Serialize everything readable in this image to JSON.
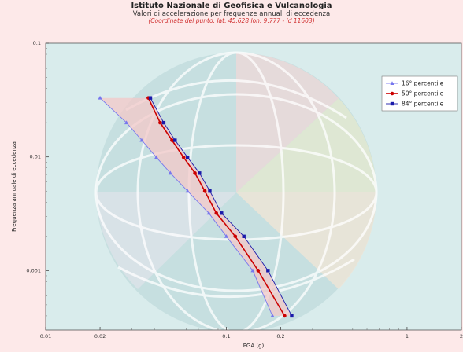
{
  "title": "Istituto Nazionale di Geofisica e Vulcanologia",
  "subtitle": "Valori di accelerazione per frequenze annuali di eccedenza",
  "coordinates": "(Coordinate del punto: lat. 45.628 lon. 9.777 - id 11603)",
  "colors": {
    "background": "#fde9e9",
    "plot_bg": "#d9ecec",
    "p16": "#7777ee",
    "p50": "#cc0000",
    "p84": "#1a1aaa",
    "band": "#f3c8c8"
  },
  "chart_data": {
    "type": "line",
    "xlabel": "PGA (g)",
    "ylabel": "Frequenza annuale di eccedenza",
    "x_scale": "log",
    "y_scale": "log",
    "xlim": [
      0.01,
      2
    ],
    "ylim": [
      0.0003,
      0.1
    ],
    "x_ticks": [
      {
        "value": 0.01,
        "label": "0.01"
      },
      {
        "value": 0.02,
        "label": "0.02"
      },
      {
        "value": 0.1,
        "label": "0.1"
      },
      {
        "value": 0.2,
        "label": "0.2"
      },
      {
        "value": 1,
        "label": "1"
      },
      {
        "value": 2,
        "label": "2"
      }
    ],
    "y_ticks": [
      {
        "value": 0.1,
        "label": "0.1"
      },
      {
        "value": 0.01,
        "label": "0.01"
      },
      {
        "value": 0.001,
        "label": "0.001"
      }
    ],
    "grid": false,
    "legend_position": "top-right",
    "series": [
      {
        "name": "16° percentile",
        "marker": "triangle",
        "x": [
          0.02,
          0.028,
          0.034,
          0.041,
          0.049,
          0.061,
          0.08,
          0.1,
          0.14,
          0.18
        ],
        "y": [
          0.033,
          0.02,
          0.014,
          0.0099,
          0.0072,
          0.005,
          0.0032,
          0.002,
          0.001,
          0.0004
        ]
      },
      {
        "name": "50° percentile",
        "marker": "circle",
        "x": [
          0.037,
          0.043,
          0.05,
          0.058,
          0.067,
          0.076,
          0.088,
          0.112,
          0.15,
          0.21
        ],
        "y": [
          0.033,
          0.02,
          0.014,
          0.0099,
          0.0072,
          0.005,
          0.0032,
          0.002,
          0.001,
          0.0004
        ]
      },
      {
        "name": "84° percentile",
        "marker": "square",
        "x": [
          0.038,
          0.045,
          0.052,
          0.061,
          0.071,
          0.081,
          0.094,
          0.125,
          0.17,
          0.23
        ],
        "y": [
          0.033,
          0.02,
          0.014,
          0.0099,
          0.0072,
          0.005,
          0.0032,
          0.002,
          0.001,
          0.0004
        ]
      }
    ]
  }
}
